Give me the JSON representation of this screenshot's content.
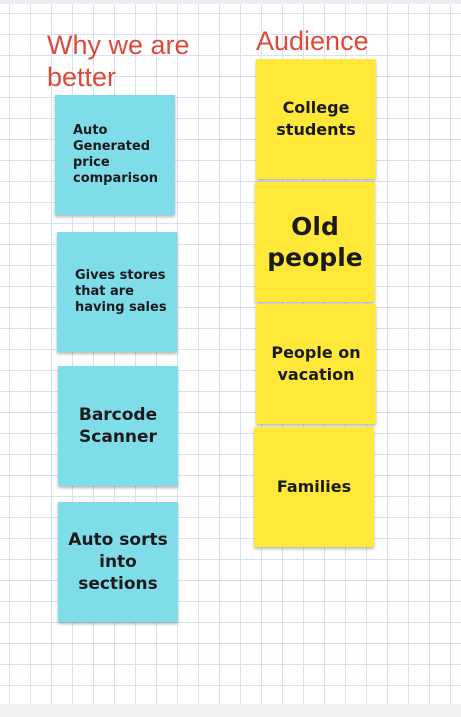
{
  "board": {
    "headings": {
      "why": "Why we are better",
      "audience": "Audience"
    },
    "why_notes": [
      "Auto Generated price comparison",
      "Gives stores that are having sales",
      "Barcode Scanner",
      "Auto sorts into sections"
    ],
    "audience_notes": [
      "College students",
      "Old people",
      "People on vacation",
      "Families"
    ]
  },
  "colors": {
    "heading": "#dd4a3a",
    "note_blue": "#7fdde9",
    "note_yellow": "#ffe838"
  }
}
